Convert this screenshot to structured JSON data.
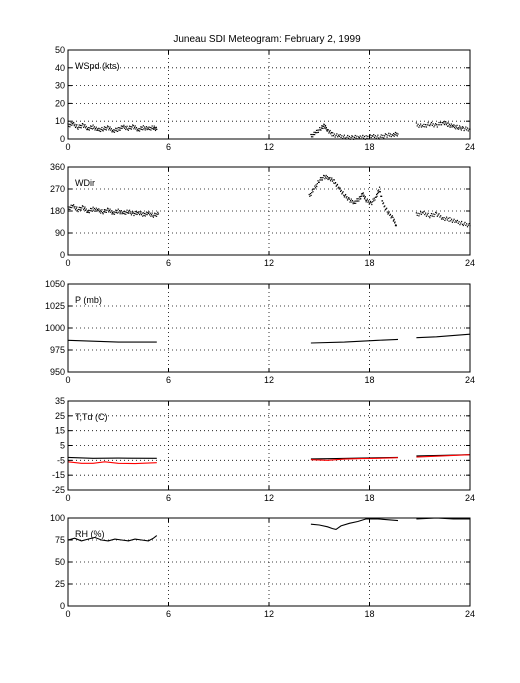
{
  "figure": {
    "title": "Juneau SDI Meteogram:  February  2, 1999"
  },
  "chart_data": [
    {
      "type": "line",
      "label": "WSpd (kts)",
      "xlim": [
        0,
        24
      ],
      "ylim": [
        0,
        50
      ],
      "xticks": [
        0,
        6,
        12,
        18,
        24
      ],
      "yticks": [
        0,
        10,
        20,
        30,
        40,
        50
      ],
      "grid": true,
      "series": [
        {
          "color": "#000000",
          "style": "dots",
          "segments": [
            [
              [
                0.0,
                7.5
              ],
              [
                0.3,
                8.5
              ],
              [
                0.6,
                6.5
              ],
              [
                0.9,
                7.8
              ],
              [
                1.2,
                5.8
              ],
              [
                1.5,
                6.8
              ],
              [
                1.8,
                4.9
              ],
              [
                2.1,
                5.6
              ],
              [
                2.4,
                6.4
              ],
              [
                2.7,
                4.6
              ],
              [
                3.0,
                5.4
              ],
              [
                3.3,
                6.8
              ],
              [
                3.6,
                5.9
              ],
              [
                3.9,
                7.0
              ],
              [
                4.2,
                5.2
              ],
              [
                4.5,
                6.4
              ],
              [
                4.8,
                5.6
              ],
              [
                5.1,
                6.5
              ],
              [
                5.3,
                5.4
              ]
            ],
            [
              [
                14.5,
                1.5
              ],
              [
                14.8,
                3.5
              ],
              [
                15.1,
                6.0
              ],
              [
                15.3,
                7.5
              ],
              [
                15.5,
                5.0
              ],
              [
                15.8,
                2.5
              ],
              [
                16.2,
                1.5
              ],
              [
                16.6,
                1.0
              ],
              [
                17.0,
                0.8
              ],
              [
                17.4,
                1.2
              ],
              [
                17.8,
                0.8
              ],
              [
                18.2,
                1.5
              ],
              [
                18.6,
                1.0
              ],
              [
                19.0,
                2.0
              ],
              [
                19.4,
                2.5
              ],
              [
                19.7,
                2.8
              ]
            ],
            [
              [
                20.8,
                8.0
              ],
              [
                21.2,
                7.0
              ],
              [
                21.6,
                8.5
              ],
              [
                22.0,
                7.5
              ],
              [
                22.4,
                9.5
              ],
              [
                22.7,
                8.0
              ],
              [
                23.0,
                7.0
              ],
              [
                23.3,
                6.5
              ],
              [
                23.6,
                5.8
              ],
              [
                24.0,
                5.5
              ]
            ]
          ]
        }
      ]
    },
    {
      "type": "line",
      "label": "WDir",
      "xlim": [
        0,
        24
      ],
      "ylim": [
        0,
        360
      ],
      "xticks": [
        0,
        6,
        12,
        18,
        24
      ],
      "yticks": [
        0,
        90,
        180,
        270,
        360
      ],
      "grid": true,
      "series": [
        {
          "color": "#000000",
          "style": "dots",
          "segments": [
            [
              [
                0.0,
                190
              ],
              [
                0.3,
                200
              ],
              [
                0.6,
                185
              ],
              [
                0.9,
                195
              ],
              [
                1.2,
                178
              ],
              [
                1.5,
                188
              ],
              [
                1.8,
                182
              ],
              [
                2.1,
                176
              ],
              [
                2.4,
                185
              ],
              [
                2.7,
                172
              ],
              [
                3.0,
                180
              ],
              [
                3.3,
                170
              ],
              [
                3.6,
                178
              ],
              [
                3.9,
                168
              ],
              [
                4.2,
                175
              ],
              [
                4.5,
                165
              ],
              [
                4.8,
                170
              ],
              [
                5.1,
                162
              ],
              [
                5.4,
                168
              ]
            ],
            [
              [
                14.4,
                240
              ],
              [
                14.7,
                270
              ],
              [
                15.0,
                305
              ],
              [
                15.3,
                320
              ],
              [
                15.6,
                315
              ],
              [
                15.9,
                300
              ],
              [
                16.2,
                270
              ],
              [
                16.5,
                245
              ],
              [
                16.8,
                225
              ],
              [
                17.1,
                215
              ],
              [
                17.4,
                230
              ],
              [
                17.6,
                250
              ],
              [
                17.8,
                225
              ],
              [
                18.1,
                210
              ],
              [
                18.4,
                240
              ],
              [
                18.6,
                270
              ],
              [
                18.8,
                210
              ],
              [
                19.1,
                175
              ],
              [
                19.4,
                150
              ],
              [
                19.6,
                120
              ]
            ],
            [
              [
                20.8,
                165
              ],
              [
                21.2,
                172
              ],
              [
                21.6,
                160
              ],
              [
                22.0,
                168
              ],
              [
                22.4,
                150
              ],
              [
                22.8,
                145
              ],
              [
                23.2,
                135
              ],
              [
                23.6,
                128
              ],
              [
                24.0,
                120
              ]
            ]
          ]
        }
      ]
    },
    {
      "type": "line",
      "label": "P (mb)",
      "xlim": [
        0,
        24
      ],
      "ylim": [
        950,
        1050
      ],
      "xticks": [
        0,
        6,
        12,
        18,
        24
      ],
      "yticks": [
        950,
        975,
        1000,
        1025,
        1050
      ],
      "grid": true,
      "series": [
        {
          "color": "#000000",
          "style": "line",
          "segments": [
            [
              [
                0.0,
                986
              ],
              [
                1.5,
                985
              ],
              [
                3.0,
                984
              ],
              [
                5.3,
                984
              ]
            ],
            [
              [
                14.5,
                983
              ],
              [
                16.5,
                984
              ],
              [
                18.5,
                986
              ],
              [
                19.7,
                987
              ]
            ],
            [
              [
                20.8,
                989
              ],
              [
                22.0,
                990
              ],
              [
                24.0,
                993
              ]
            ]
          ]
        }
      ]
    },
    {
      "type": "line",
      "label": "T,Td (C)",
      "xlim": [
        0,
        24
      ],
      "ylim": [
        -25,
        35
      ],
      "xticks": [
        0,
        6,
        12,
        18,
        24
      ],
      "yticks": [
        -25,
        -15,
        -5,
        5,
        15,
        25,
        35
      ],
      "grid": true,
      "series": [
        {
          "color": "#000000",
          "style": "line",
          "segments": [
            [
              [
                0.0,
                -3.0
              ],
              [
                1.5,
                -3.6
              ],
              [
                3.0,
                -3.5
              ],
              [
                5.3,
                -3.6
              ]
            ],
            [
              [
                14.5,
                -4.0
              ],
              [
                16.0,
                -3.8
              ],
              [
                17.5,
                -3.4
              ],
              [
                19.7,
                -3.0
              ]
            ],
            [
              [
                20.8,
                -2.0
              ],
              [
                22.5,
                -1.6
              ],
              [
                24.0,
                -1.2
              ]
            ]
          ]
        },
        {
          "color": "#ff0000",
          "style": "line",
          "segments": [
            [
              [
                0.0,
                -6.0
              ],
              [
                0.8,
                -7.0
              ],
              [
                1.5,
                -7.0
              ],
              [
                2.2,
                -6.0
              ],
              [
                3.0,
                -7.0
              ],
              [
                4.0,
                -7.2
              ],
              [
                5.3,
                -6.6
              ]
            ],
            [
              [
                14.5,
                -4.6
              ],
              [
                15.5,
                -5.0
              ],
              [
                16.5,
                -4.2
              ],
              [
                17.5,
                -3.8
              ],
              [
                18.5,
                -3.6
              ],
              [
                19.7,
                -3.2
              ]
            ],
            [
              [
                20.8,
                -2.8
              ],
              [
                22.0,
                -2.2
              ],
              [
                24.0,
                -1.2
              ]
            ]
          ]
        }
      ]
    },
    {
      "type": "line",
      "label": "RH (%)",
      "xlim": [
        0,
        24
      ],
      "ylim": [
        0,
        100
      ],
      "xticks": [
        0,
        6,
        12,
        18,
        24
      ],
      "yticks": [
        0,
        25,
        50,
        75,
        100
      ],
      "grid": true,
      "series": [
        {
          "color": "#000000",
          "style": "line",
          "segments": [
            [
              [
                0.0,
                75
              ],
              [
                0.4,
                77
              ],
              [
                0.8,
                74
              ],
              [
                1.2,
                76
              ],
              [
                1.6,
                78
              ],
              [
                2.0,
                75
              ],
              [
                2.4,
                74
              ],
              [
                2.8,
                76
              ],
              [
                3.2,
                75
              ],
              [
                3.6,
                74
              ],
              [
                4.0,
                76
              ],
              [
                4.4,
                75
              ],
              [
                4.8,
                74
              ],
              [
                5.1,
                77
              ],
              [
                5.3,
                80
              ]
            ],
            [
              [
                14.5,
                93
              ],
              [
                15.0,
                92
              ],
              [
                15.5,
                90
              ],
              [
                15.8,
                88
              ],
              [
                16.0,
                87
              ],
              [
                16.3,
                91
              ],
              [
                16.8,
                94
              ],
              [
                17.3,
                96
              ],
              [
                17.8,
                99
              ],
              [
                18.5,
                99
              ],
              [
                19.7,
                97
              ]
            ],
            [
              [
                20.8,
                99
              ],
              [
                22.0,
                100
              ],
              [
                23.0,
                99
              ],
              [
                24.0,
                99
              ]
            ]
          ]
        }
      ]
    }
  ]
}
